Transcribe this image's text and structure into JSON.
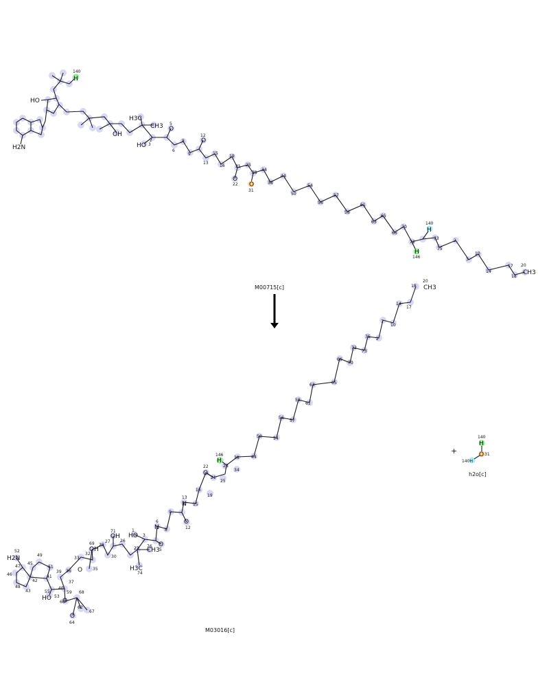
{
  "reaction": {
    "catalyst_label": "M00715[c]",
    "product_label": "M03016[c]",
    "coproduct_label": "h2o[c]",
    "plus_sign": "+"
  },
  "colors": {
    "atom_halo": "#d8d8f4",
    "oxygen": "#e0009a",
    "nitrogen": "#2c3fd1",
    "phosphorus": "#e07a00",
    "hydrogen_highlight": "#8ef08e",
    "hydrogen_alt_highlight": "#a6ecf2",
    "oxygen_highlight": "#ffd28a"
  },
  "reactant": {
    "chain_numbers": [
      "2",
      "3",
      "5",
      "6",
      "8",
      "9",
      "10",
      "12",
      "13",
      "14",
      "15",
      "16",
      "17",
      "18",
      "19",
      "21",
      "22",
      "25",
      "28",
      "31",
      "34",
      "38",
      "44",
      "50",
      "54",
      "56",
      "57",
      "58",
      "61",
      "63",
      "65",
      "66",
      "70",
      "72",
      "73",
      "75",
      "7",
      "146",
      "140",
      "20"
    ],
    "labels": [
      "HO",
      "CH3",
      "H3C",
      "H",
      "H2N",
      "HO",
      "OH",
      "OH",
      "O",
      "O",
      "O",
      "O"
    ]
  },
  "product": {
    "chain_numbers": [
      "18",
      "20",
      "14",
      "17",
      "10",
      "7",
      "75",
      "2",
      "72",
      "73",
      "66",
      "70",
      "65",
      "63",
      "61",
      "58",
      "57",
      "56",
      "54",
      "50",
      "44",
      "38",
      "34",
      "146",
      "28",
      "22",
      "21",
      "25",
      "16",
      "19",
      "13",
      "15",
      "12",
      "9",
      "6",
      "8",
      "5",
      "3",
      "1",
      "23",
      "76",
      "74",
      "26",
      "27",
      "30",
      "29",
      "71",
      "69",
      "32",
      "33",
      "35",
      "36",
      "37",
      "39",
      "40",
      "41",
      "42",
      "45",
      "46",
      "47",
      "48",
      "49",
      "51",
      "52",
      "43",
      "53",
      "55",
      "59",
      "60",
      "62",
      "64",
      "67",
      "68"
    ],
    "labels": [
      "CH3",
      "H",
      "O",
      "N",
      "O",
      "HO",
      "N",
      "O",
      "CH3",
      "H3C",
      "OH",
      "OH",
      "O",
      "O",
      "H2N",
      "HO",
      "O",
      "O",
      "O"
    ]
  },
  "water": {
    "atoms": [
      "140",
      "H",
      "31",
      "140H",
      "O"
    ]
  }
}
